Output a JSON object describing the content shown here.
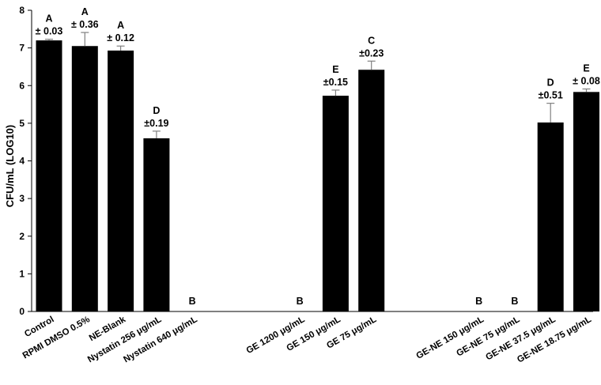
{
  "chart_data": {
    "type": "bar",
    "ylabel": "CFU/mL (LOG10)",
    "xlabel": "",
    "title": "",
    "ylim": [
      0,
      8
    ],
    "yticks": [
      0,
      1,
      2,
      3,
      4,
      5,
      6,
      7,
      8
    ],
    "grid": false,
    "bar_color": "#000000",
    "error_color": "#808080",
    "categories": [
      "Control",
      "RPMI DMSO 0.5%",
      "NE-Blank",
      "Nystatin 256 μg/mL",
      "Nystatin 640 μg/mL",
      "",
      "",
      "GE 1200 μg/mL",
      "GE 150 μg/mL",
      "GE 75 μg/mL",
      "",
      "",
      "GE-NE 150 μg/mL",
      "GE-NE 75 μg/mL",
      "GE-NE 37.5 μg/mL",
      "GE-NE 18.75 μg/mL"
    ],
    "values": [
      7.2,
      7.05,
      6.93,
      4.6,
      0,
      null,
      null,
      0,
      5.73,
      6.42,
      null,
      null,
      0,
      0,
      5.02,
      5.83
    ],
    "errors": [
      0.03,
      0.36,
      0.12,
      0.19,
      0,
      null,
      null,
      0,
      0.15,
      0.23,
      null,
      null,
      0,
      0,
      0.51,
      0.08
    ],
    "letters": [
      "A",
      "A",
      "A",
      "D",
      "B",
      "",
      "",
      "B",
      "E",
      "C",
      "",
      "",
      "B",
      "B",
      "D",
      "E"
    ],
    "sd_labels": [
      "± 0.03",
      "± 0.36",
      "± 0.12",
      "±0.19",
      "",
      "",
      "",
      "",
      "±0.15",
      "±0.23",
      "",
      "",
      "",
      "",
      "±0.51",
      "± 0.08"
    ]
  }
}
